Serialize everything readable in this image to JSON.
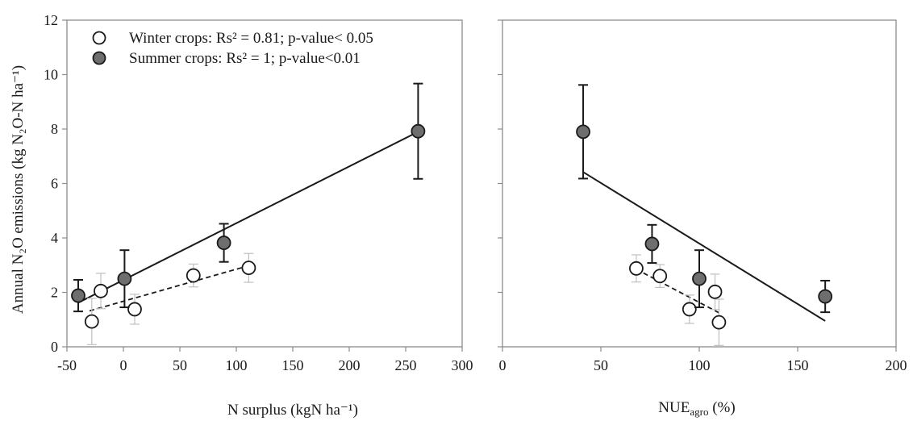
{
  "chart_data": [
    {
      "type": "scatter",
      "xlabel": "N surplus (kgN ha⁻¹)",
      "ylabel": "Annual N₂O emissions (kg N₂O-N ha⁻¹)",
      "xlim": [
        -50,
        300
      ],
      "ylim": [
        0,
        12
      ],
      "xticks": [
        -50,
        0,
        50,
        100,
        150,
        200,
        250,
        300
      ],
      "yticks": [
        0,
        2,
        4,
        6,
        8,
        10,
        12
      ],
      "xtick_labels": [
        "-50",
        "0",
        "50",
        "100",
        "150",
        "200",
        "250",
        "300"
      ],
      "ytick_labels": [
        "0",
        "2",
        "4",
        "6",
        "8",
        "10",
        "12"
      ],
      "grid": false,
      "legend_position": "top-left",
      "series": [
        {
          "name": "Winter crops: Rs² = 0.81; p-value< 0.05",
          "marker": "open-circle",
          "color": "#ffffff",
          "error_color": "#bfbfbf",
          "points": [
            {
              "x": -28,
              "y": 0.93,
              "err": 0.85
            },
            {
              "x": -20,
              "y": 2.05,
              "err": 0.65
            },
            {
              "x": 10,
              "y": 1.38,
              "err": 0.55
            },
            {
              "x": 62,
              "y": 2.62,
              "err": 0.42
            },
            {
              "x": 111,
              "y": 2.9,
              "err": 0.53
            }
          ],
          "trendline": {
            "style": "dashed",
            "x": [
              -30,
              111
            ],
            "y": [
              1.32,
              2.98
            ]
          }
        },
        {
          "name": "Summer crops: Rs² = 1; p-value<0.01",
          "marker": "filled-circle",
          "color": "#6e6e6e",
          "error_color": "#1a1a1a",
          "points": [
            {
              "x": -40,
              "y": 1.88,
              "err": 0.58
            },
            {
              "x": 1,
              "y": 2.5,
              "err": 1.05
            },
            {
              "x": 89,
              "y": 3.82,
              "err": 0.7
            },
            {
              "x": 261,
              "y": 7.92,
              "err": 1.75
            }
          ],
          "trendline": {
            "style": "solid",
            "x": [
              -40,
              261
            ],
            "y": [
              1.62,
              7.9
            ]
          }
        }
      ]
    },
    {
      "type": "scatter",
      "xlabel_main": "NUE",
      "xlabel_sub": "agro",
      "xlabel_rest": " (%)",
      "xlim": [
        0,
        200
      ],
      "ylim": [
        0,
        12
      ],
      "xticks": [
        0,
        50,
        100,
        150,
        200
      ],
      "yticks": [
        0,
        2,
        4,
        6,
        8,
        10,
        12
      ],
      "xtick_labels": [
        "0",
        "50",
        "100",
        "150",
        "200"
      ],
      "grid": false,
      "series": [
        {
          "marker": "open-circle",
          "color": "#ffffff",
          "error_color": "#bfbfbf",
          "points": [
            {
              "x": 68,
              "y": 2.88,
              "err": 0.5
            },
            {
              "x": 80,
              "y": 2.6,
              "err": 0.42
            },
            {
              "x": 95,
              "y": 1.38,
              "err": 0.52
            },
            {
              "x": 108,
              "y": 2.02,
              "err": 0.65
            },
            {
              "x": 110,
              "y": 0.9,
              "err": 0.85
            }
          ],
          "trendline": {
            "style": "dashed",
            "x": [
              68,
              110
            ],
            "y": [
              2.85,
              1.25
            ]
          }
        },
        {
          "marker": "filled-circle",
          "color": "#6e6e6e",
          "error_color": "#1a1a1a",
          "points": [
            {
              "x": 41,
              "y": 7.9,
              "err": 1.72
            },
            {
              "x": 76,
              "y": 3.78,
              "err": 0.7
            },
            {
              "x": 100,
              "y": 2.5,
              "err": 1.05
            },
            {
              "x": 164,
              "y": 1.85,
              "err": 0.58
            }
          ],
          "trendline": {
            "style": "solid",
            "x": [
              41,
              164
            ],
            "y": [
              6.42,
              0.95
            ]
          }
        }
      ]
    }
  ]
}
